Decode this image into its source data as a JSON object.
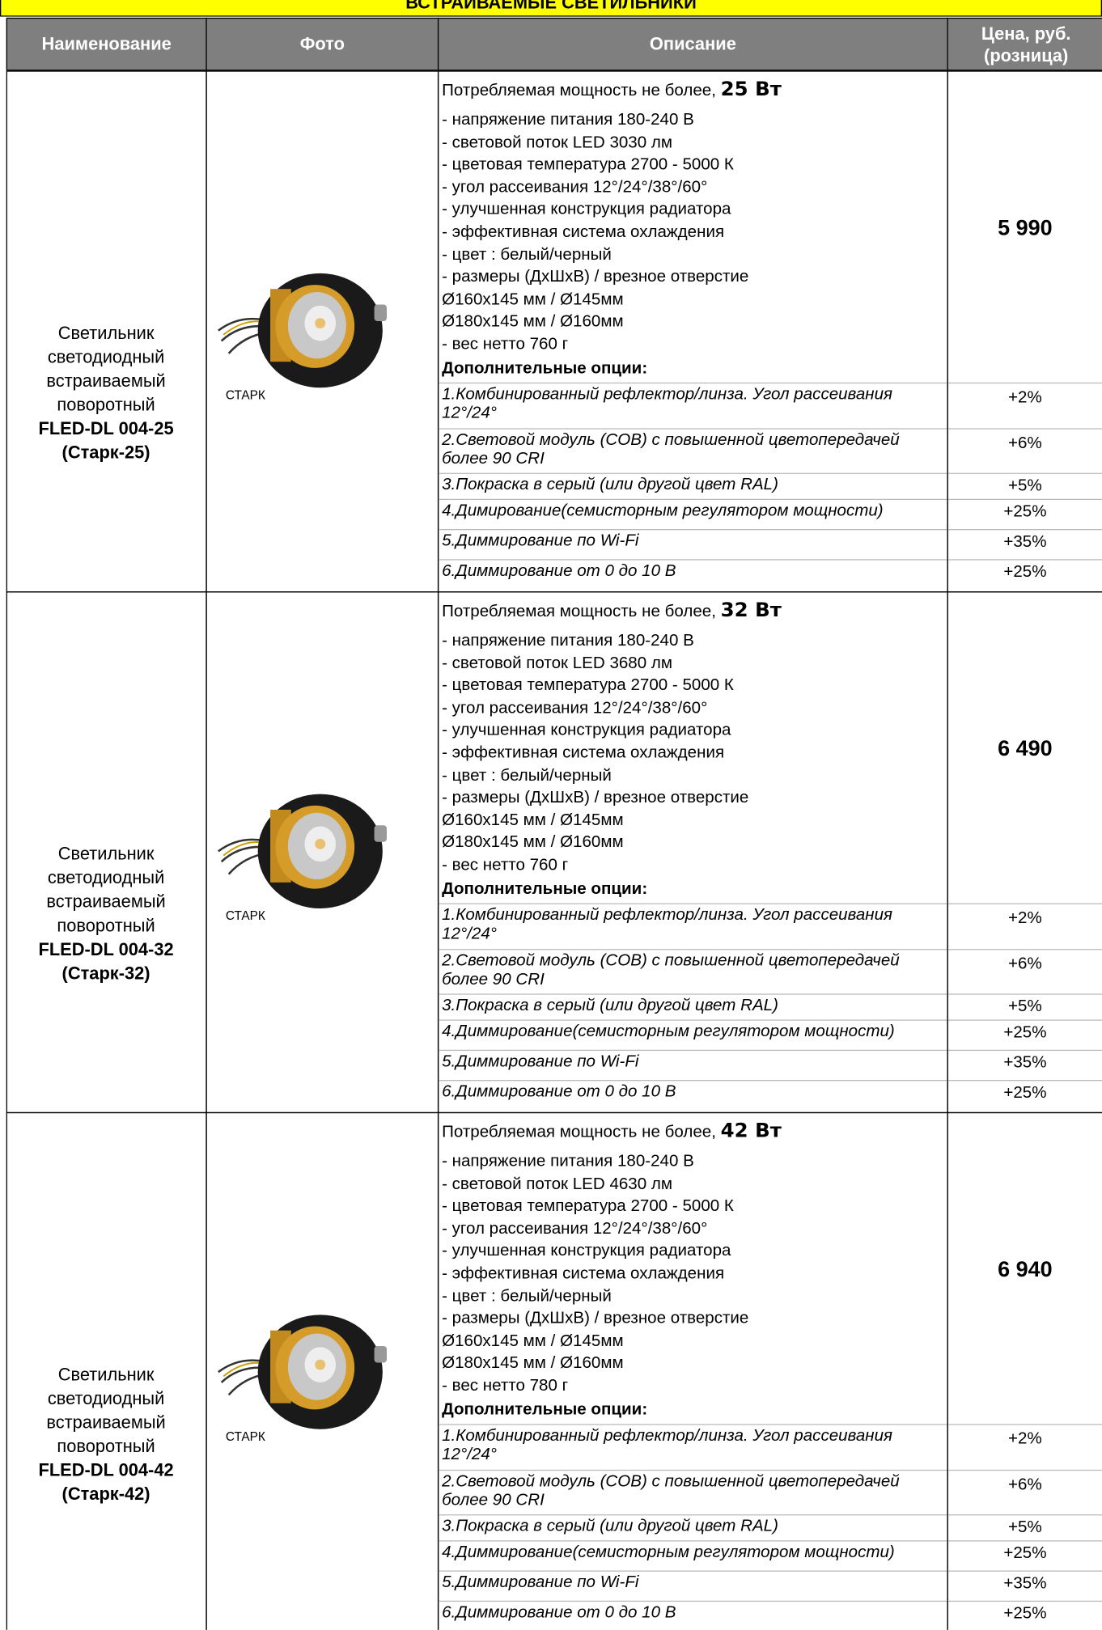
{
  "header": {
    "title": "ВСТРАИВАЕМЫЕ СВЕТИЛЬНИКИ"
  },
  "table": {
    "columns": [
      "Наименование",
      "Фото",
      "Описание",
      "Цена, руб. (розница)"
    ],
    "rows": [
      {
        "name": "Светильник светодиодный встраиваемый поворотный",
        "model": "FLED-DL 004-25",
        "alias": "(Старк-25)",
        "photo_label": "СТАРК",
        "power_label": "Потребляемая мощность не более,",
        "power": "25 Вт",
        "specs": [
          "- напряжение питания 180-240 В",
          "- световой поток LED 3030 лм",
          "- цветовая температура 2700 - 5000 К",
          "- угол рассеивания 12°/24°/38°/60°",
          "- улучшенная конструкция радиатора",
          "- эффективная система охлаждения",
          "- цвет : белый/черный",
          "- размеры (ДхШхВ)  / врезное отверстие",
          "Ø160х145 мм     /    Ø145мм",
          "Ø180х145 мм     /    Ø160мм",
          "- вес нетто   760 г"
        ],
        "price": "5 990",
        "options_title": "Дополнительные опции:",
        "options": [
          {
            "text": "1.Комбинированный рефлектор/линза. Угол рассеивания 12°/24°",
            "price": "+2%"
          },
          {
            "text": "2.Световой модуль (COB) с повышенной цветопередачей более 90 CRI",
            "price": "+6%"
          },
          {
            "text": "3.Покраска в серый (или другой цвет RAL)",
            "price": "+5%"
          },
          {
            "text": "4.Димирование(семисторным регулятором мощности)",
            "price": "+25%"
          },
          {
            "text": "5.Диммирование по Wi-Fi",
            "price": "+35%"
          },
          {
            "text": "6.Диммирование от 0 до 10 В",
            "price": "+25%"
          }
        ]
      },
      {
        "name": "Светильник светодиодный встраиваемый поворотный",
        "model": "FLED-DL 004-32",
        "alias": "(Старк-32)",
        "photo_label": "СТАРК",
        "power_label": "Потребляемая мощность не более,",
        "power": "32 Вт",
        "specs": [
          "- напряжение питания 180-240 В",
          "- световой поток LED 3680 лм",
          "- цветовая температура 2700 - 5000 К",
          "- угол рассеивания 12°/24°/38°/60°",
          "- улучшенная конструкция радиатора",
          "- эффективная система охлаждения",
          "- цвет : белый/черный",
          "- размеры (ДхШхВ)  / врезное отверстие",
          "Ø160х145 мм     /    Ø145мм",
          "Ø180х145 мм     /    Ø160мм",
          "- вес нетто   760 г"
        ],
        "price": "6 490",
        "options_title": "Дополнительные опции:",
        "options": [
          {
            "text": "1.Комбинированный рефлектор/линза. Угол рассеивания 12°/24°",
            "price": "+2%"
          },
          {
            "text": "2.Световой модуль (COB) с повышенной цветопередачей более 90 CRI",
            "price": "+6%"
          },
          {
            "text": "3.Покраска в серый (или другой цвет RAL)",
            "price": "+5%"
          },
          {
            "text": "4.Диммирование(семисторным регулятором мощности)",
            "price": "+25%"
          },
          {
            "text": "5.Диммирование по Wi-Fi",
            "price": "+35%"
          },
          {
            "text": "6.Диммирование от 0 до 10 В",
            "price": "+25%"
          }
        ]
      },
      {
        "name": "Светильник светодиодный встраиваемый поворотный",
        "model": "FLED-DL 004-42",
        "alias": "(Старк-42)",
        "photo_label": "СТАРК",
        "power_label": "Потребляемая мощность не более,",
        "power": "42 Вт",
        "specs": [
          "- напряжение питания 180-240 В",
          "- световой поток LED 4630 лм",
          "- цветовая температура 2700 - 5000 К",
          "- угол рассеивания 12°/24°/38°/60°",
          "- улучшенная конструкция радиатора",
          "- эффективная система охлаждения",
          "- цвет : белый/черный",
          "- размеры (ДхШхВ)  / врезное отверстие",
          "Ø160х145 мм     /    Ø145мм",
          "Ø180х145 мм     /    Ø160мм",
          "- вес нетто   780 г"
        ],
        "price": "6 940",
        "options_title": "Дополнительные опции:",
        "options": [
          {
            "text": "1.Комбинированный рефлектор/линза. Угол рассеивания 12°/24°",
            "price": "+2%"
          },
          {
            "text": "2.Световой модуль (COB) с повышенной цветопередачей более 90 CRI",
            "price": "+6%"
          },
          {
            "text": "3.Покраска в серый (или другой цвет RAL)",
            "price": "+5%"
          },
          {
            "text": "4.Диммирование(семисторным регулятором мощности)",
            "price": "+25%"
          },
          {
            "text": "5.Диммирование по Wi-Fi",
            "price": "+35%"
          },
          {
            "text": "6.Диммирование от 0 до 10 В",
            "price": "+25%"
          }
        ]
      }
    ]
  }
}
